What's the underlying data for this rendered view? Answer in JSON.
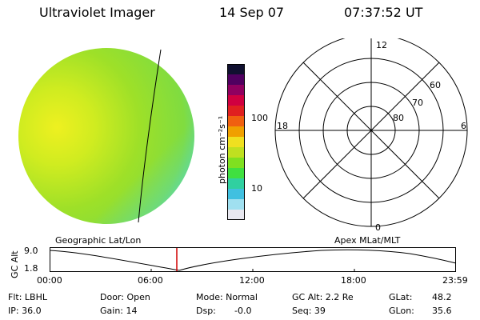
{
  "header": {
    "title": "Ultraviolet Imager",
    "date": "14 Sep 07",
    "time": "07:37:52 UT"
  },
  "colorbar": {
    "unit_label": "photon cm⁻²s⁻¹",
    "ticks": [
      "100",
      "10"
    ],
    "colors": [
      "#101030",
      "#500060",
      "#900060",
      "#d00040",
      "#e02020",
      "#f06010",
      "#f0a000",
      "#f0e020",
      "#c0e020",
      "#80e020",
      "#40e040",
      "#30d0a0",
      "#40c0e0",
      "#a0e0f0",
      "#e8e8f0"
    ]
  },
  "polar_plot": {
    "mlt_labels": [
      "12",
      "18",
      "6",
      "0"
    ],
    "lat_labels": [
      "60",
      "70",
      "80"
    ]
  },
  "image_labels": {
    "left": "Geographic Lat/Lon",
    "right": "Apex MLat/MLT"
  },
  "altitude_plot": {
    "ylabel": "GC Alt",
    "y_ticks": [
      "9.0",
      "1.8"
    ],
    "x_ticks": [
      "00:00",
      "06:00",
      "12:00",
      "18:00",
      "23:59"
    ]
  },
  "info": {
    "filter": "Flt: LBHL",
    "door": "Door: Open",
    "mode": "Mode: Normal",
    "gc_alt": "GC Alt: 2.2 Re",
    "glat": "GLat:",
    "glat_val": "48.2",
    "ip": "IP: 36.0",
    "gain": "Gain: 14",
    "dsp": "Dsp:",
    "dsp_val": "-0.0",
    "seq": "Seq: 39",
    "glon": "GLon:",
    "glon_val": "35.6"
  },
  "colors": {
    "disk_main": "#9ee028",
    "disk_bright": "#e6f020",
    "disk_limb": "#50d8d0",
    "marker": "#d00000"
  }
}
